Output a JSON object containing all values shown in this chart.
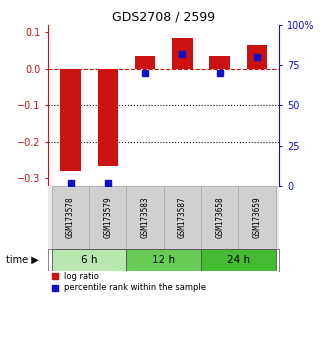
{
  "title": "GDS2708 / 2599",
  "samples": [
    "GSM173578",
    "GSM173579",
    "GSM173583",
    "GSM173587",
    "GSM173658",
    "GSM173659"
  ],
  "log_ratios": [
    -0.28,
    -0.265,
    0.035,
    0.085,
    0.035,
    0.065
  ],
  "percentile_ranks": [
    2,
    2,
    70,
    82,
    70,
    80
  ],
  "time_groups": [
    {
      "label": "6 h",
      "start": 0,
      "end": 2,
      "color": "#b8e8b0"
    },
    {
      "label": "12 h",
      "start": 2,
      "end": 4,
      "color": "#66cc55"
    },
    {
      "label": "24 h",
      "start": 4,
      "end": 6,
      "color": "#44bb33"
    }
  ],
  "ylim_left": [
    -0.32,
    0.12
  ],
  "ylim_right": [
    0,
    100
  ],
  "yticks_left": [
    -0.3,
    -0.2,
    -0.1,
    0.0,
    0.1
  ],
  "yticks_right": [
    0,
    25,
    50,
    75,
    100
  ],
  "bar_color_red": "#cc1111",
  "bar_color_blue": "#1111cc",
  "zero_line_color": "#cc1111",
  "dotted_line_color": "#000000",
  "background_color": "#ffffff",
  "bar_width": 0.55,
  "blue_marker_size": 28,
  "legend_red": "log ratio",
  "legend_blue": "percentile rank within the sample"
}
